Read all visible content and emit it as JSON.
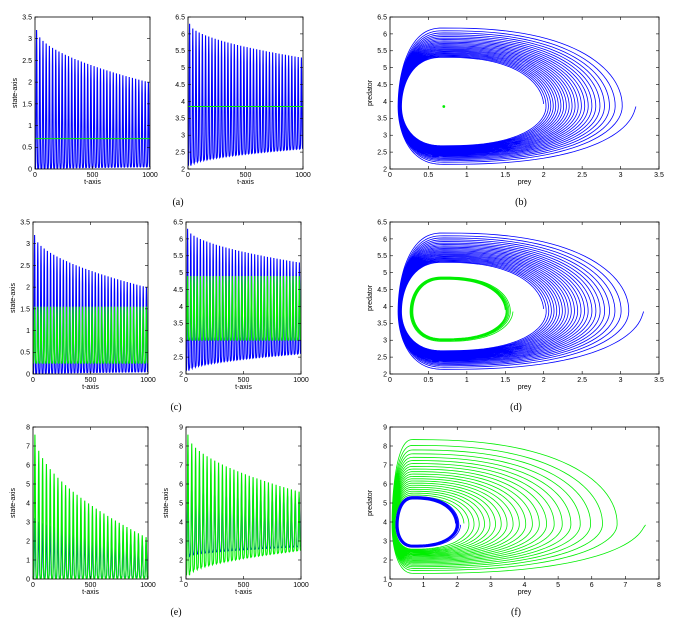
{
  "colors": {
    "blue": "#0000ff",
    "green": "#00ee00",
    "axis": "#000000"
  },
  "captions": [
    "(a)",
    "(b)",
    "(c)",
    "(d)",
    "(e)",
    "(f)"
  ],
  "chart_data": [
    {
      "id": "a1",
      "type": "line",
      "title": "",
      "xlabel": "t-axis",
      "ylabel": "state-axis",
      "xlim": [
        0,
        1000
      ],
      "ylim": [
        0,
        3.5
      ],
      "grid": false,
      "xticks": [
        "0",
        "500",
        "1000"
      ],
      "yticks": [
        "0",
        "0.5",
        "1",
        "1.5",
        "2",
        "2.5",
        "3",
        "3.5"
      ],
      "series": [
        {
          "color": "blue",
          "kind": "oscillation",
          "cycles": 36,
          "lo_start": 0.0,
          "hi_start": 3.2,
          "lo_end": 0.05,
          "hi_end": 2.0
        },
        {
          "color": "green",
          "kind": "constant",
          "value": 0.7
        }
      ]
    },
    {
      "id": "a2",
      "type": "line",
      "title": "",
      "xlabel": "t-axis",
      "ylabel": "",
      "xlim": [
        0,
        1000
      ],
      "ylim": [
        2,
        6.5
      ],
      "grid": false,
      "xticks": [
        "0",
        "500",
        "1000"
      ],
      "yticks": [
        "2",
        "2.5",
        "3",
        "3.5",
        "4",
        "4.5",
        "5",
        "5.5",
        "6",
        "6.5"
      ],
      "series": [
        {
          "color": "blue",
          "kind": "oscillation",
          "cycles": 36,
          "lo_start": 2.1,
          "hi_start": 6.3,
          "lo_end": 2.6,
          "hi_end": 5.3
        },
        {
          "color": "green",
          "kind": "constant",
          "value": 3.85
        }
      ]
    },
    {
      "id": "b",
      "type": "line",
      "title": "",
      "xlabel": "prey",
      "ylabel": "predator",
      "xlim": [
        0,
        3.5
      ],
      "ylim": [
        2,
        6.5
      ],
      "grid": false,
      "xticks": [
        "0",
        "0.5",
        "1",
        "1.5",
        "2",
        "2.5",
        "3",
        "3.5"
      ],
      "yticks": [
        "2",
        "2.5",
        "3",
        "3.5",
        "4",
        "4.5",
        "5",
        "5.5",
        "6",
        "6.5"
      ],
      "series": [
        {
          "color": "blue",
          "kind": "spiral",
          "loops": 24,
          "center": [
            0.7,
            3.85
          ],
          "start": {
            "xmax": 3.2,
            "ymax": 6.3,
            "ymin": 2.1,
            "xmin": 0.1
          },
          "end": {
            "xmax": 2.0,
            "ymax": 5.3,
            "ymin": 2.7,
            "xmin": 0.15
          }
        },
        {
          "color": "green",
          "kind": "point",
          "x": 0.7,
          "y": 3.85
        }
      ]
    },
    {
      "id": "c1",
      "type": "line",
      "title": "",
      "xlabel": "t-axis",
      "ylabel": "state-axis",
      "xlim": [
        0,
        1000
      ],
      "ylim": [
        0,
        3.5
      ],
      "grid": false,
      "xticks": [
        "0",
        "500",
        "1000"
      ],
      "yticks": [
        "0",
        "0.5",
        "1",
        "1.5",
        "2",
        "2.5",
        "3",
        "3.5"
      ],
      "series": [
        {
          "color": "blue",
          "kind": "oscillation",
          "cycles": 36,
          "lo_start": 0.0,
          "hi_start": 3.2,
          "lo_end": 0.05,
          "hi_end": 2.0
        },
        {
          "color": "green",
          "kind": "oscillation",
          "cycles": 36,
          "lo_start": 0.25,
          "hi_start": 1.55,
          "lo_end": 0.25,
          "hi_end": 1.55
        }
      ]
    },
    {
      "id": "c2",
      "type": "line",
      "title": "",
      "xlabel": "t-axis",
      "ylabel": "",
      "xlim": [
        0,
        1000
      ],
      "ylim": [
        2,
        6.5
      ],
      "grid": false,
      "xticks": [
        "0",
        "500",
        "1000"
      ],
      "yticks": [
        "2",
        "2.5",
        "3",
        "3.5",
        "4",
        "4.5",
        "5",
        "5.5",
        "6",
        "6.5"
      ],
      "series": [
        {
          "color": "blue",
          "kind": "oscillation",
          "cycles": 36,
          "lo_start": 2.1,
          "hi_start": 6.3,
          "lo_end": 2.6,
          "hi_end": 5.3
        },
        {
          "color": "green",
          "kind": "oscillation",
          "cycles": 36,
          "lo_start": 3.0,
          "hi_start": 4.9,
          "lo_end": 3.0,
          "hi_end": 4.9
        }
      ]
    },
    {
      "id": "d",
      "type": "line",
      "title": "",
      "xlabel": "prey",
      "ylabel": "predator",
      "xlim": [
        0,
        3.5
      ],
      "ylim": [
        2,
        6.5
      ],
      "grid": false,
      "xticks": [
        "0",
        "0.5",
        "1",
        "1.5",
        "2",
        "2.5",
        "3",
        "3.5"
      ],
      "yticks": [
        "2",
        "2.5",
        "3",
        "3.5",
        "4",
        "4.5",
        "5",
        "5.5",
        "6",
        "6.5"
      ],
      "series": [
        {
          "color": "blue",
          "kind": "spiral",
          "loops": 24,
          "center": [
            0.7,
            3.85
          ],
          "start": {
            "xmax": 3.3,
            "ymax": 6.3,
            "ymin": 2.1,
            "xmin": 0.1
          },
          "end": {
            "xmax": 2.0,
            "ymax": 5.3,
            "ymin": 2.7,
            "xmin": 0.15
          }
        },
        {
          "color": "green",
          "kind": "spiral",
          "loops": 6,
          "center": [
            0.7,
            3.85
          ],
          "start": {
            "xmax": 1.6,
            "ymax": 4.9,
            "ymin": 2.95,
            "xmin": 0.25
          },
          "end": {
            "xmax": 1.5,
            "ymax": 4.8,
            "ymin": 3.05,
            "xmin": 0.3
          }
        }
      ]
    },
    {
      "id": "e1",
      "type": "line",
      "title": "",
      "xlabel": "t-axis",
      "ylabel": "state-axis",
      "xlim": [
        0,
        1000
      ],
      "ylim": [
        0,
        8
      ],
      "grid": false,
      "xticks": [
        "0",
        "500",
        "1000"
      ],
      "yticks": [
        "0",
        "1",
        "2",
        "3",
        "4",
        "5",
        "6",
        "7",
        "8"
      ],
      "series": [
        {
          "color": "blue",
          "kind": "oscillation",
          "cycles": 30,
          "lo_start": 0.05,
          "hi_start": 3.2,
          "lo_end": 0.1,
          "hi_end": 2.0
        },
        {
          "color": "green",
          "kind": "oscillation",
          "cycles": 30,
          "lo_start": 0.0,
          "hi_start": 7.6,
          "lo_end": 0.05,
          "hi_end": 2.2
        }
      ]
    },
    {
      "id": "e2",
      "type": "line",
      "title": "",
      "xlabel": "t-axis",
      "ylabel": "state-axis",
      "xlim": [
        0,
        1000
      ],
      "ylim": [
        1,
        9
      ],
      "grid": false,
      "xticks": [
        "0",
        "500",
        "1000"
      ],
      "yticks": [
        "1",
        "2",
        "3",
        "4",
        "5",
        "6",
        "7",
        "8",
        "9"
      ],
      "series": [
        {
          "color": "blue",
          "kind": "oscillation",
          "cycles": 30,
          "lo_start": 2.2,
          "hi_start": 6.3,
          "lo_end": 2.7,
          "hi_end": 5.3
        },
        {
          "color": "green",
          "kind": "oscillation",
          "cycles": 30,
          "lo_start": 1.2,
          "hi_start": 8.6,
          "lo_end": 2.5,
          "hi_end": 5.6
        }
      ]
    },
    {
      "id": "f",
      "type": "line",
      "title": "",
      "xlabel": "prey",
      "ylabel": "predator",
      "xlim": [
        0,
        8
      ],
      "ylim": [
        1,
        9
      ],
      "grid": false,
      "xticks": [
        "0",
        "1",
        "2",
        "3",
        "4",
        "5",
        "6",
        "7",
        "8"
      ],
      "yticks": [
        "1",
        "2",
        "3",
        "4",
        "5",
        "6",
        "7",
        "8",
        "9"
      ],
      "series": [
        {
          "color": "green",
          "kind": "spiral",
          "loops": 22,
          "center": [
            0.7,
            3.85
          ],
          "start": {
            "xmax": 7.6,
            "ymax": 8.8,
            "ymin": 1.2,
            "xmin": 0.05
          },
          "end": {
            "xmax": 2.2,
            "ymax": 5.3,
            "ymin": 2.6,
            "xmin": 0.15
          }
        },
        {
          "color": "blue",
          "kind": "spiral",
          "loops": 6,
          "center": [
            0.7,
            3.85
          ],
          "start": {
            "xmax": 2.1,
            "ymax": 5.4,
            "ymin": 2.65,
            "xmin": 0.15
          },
          "end": {
            "xmax": 1.95,
            "ymax": 5.2,
            "ymin": 2.8,
            "xmin": 0.25
          }
        }
      ]
    }
  ]
}
